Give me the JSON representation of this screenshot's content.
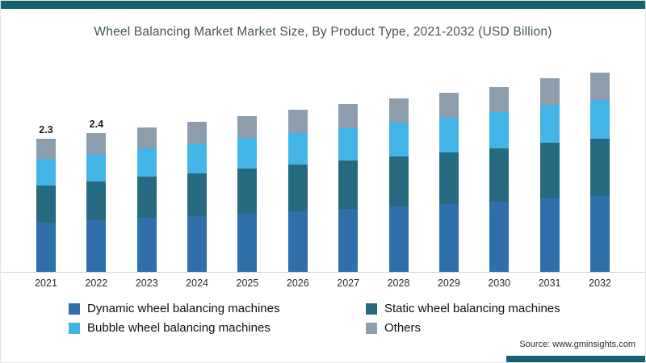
{
  "page": {
    "title": "Wheel Balancing Market Market Size, By Product Type, 2021-2032 (USD Billion)",
    "source": "Source: www.gminsights.com"
  },
  "colors": {
    "accent_teal": "#16616f",
    "axis_line": "#ccd2d6"
  },
  "chart_data": {
    "type": "bar",
    "stacked": true,
    "title": "Wheel Balancing Market Market Size, By Product Type, 2021-2032 (USD Billion)",
    "unit": "USD Billion",
    "categories": [
      "2021",
      "2022",
      "2023",
      "2024",
      "2025",
      "2026",
      "2027",
      "2028",
      "2029",
      "2030",
      "2031",
      "2032"
    ],
    "series": [
      {
        "name": "Dynamic wheel balancing machines",
        "color": "#2e6fac",
        "values": [
          0.85,
          0.89,
          0.93,
          0.97,
          1.01,
          1.05,
          1.09,
          1.13,
          1.17,
          1.21,
          1.27,
          1.31
        ]
      },
      {
        "name": "Static wheel balancing machines",
        "color": "#266a80",
        "values": [
          0.65,
          0.68,
          0.71,
          0.74,
          0.77,
          0.8,
          0.83,
          0.86,
          0.89,
          0.92,
          0.96,
          0.99
        ]
      },
      {
        "name": "Bubble wheel balancing machines",
        "color": "#42b5e6",
        "values": [
          0.45,
          0.47,
          0.49,
          0.51,
          0.53,
          0.55,
          0.57,
          0.59,
          0.61,
          0.63,
          0.66,
          0.68
        ]
      },
      {
        "name": "Others",
        "color": "#8e9dac",
        "values": [
          0.35,
          0.36,
          0.37,
          0.38,
          0.39,
          0.4,
          0.41,
          0.42,
          0.43,
          0.44,
          0.46,
          0.47
        ]
      }
    ],
    "bar_labels": [
      "2.3",
      "2.4",
      "",
      "",
      "",
      "",
      "",
      "",
      "",
      "",
      "",
      ""
    ],
    "totals": [
      2.3,
      2.4,
      2.5,
      2.6,
      2.7,
      2.8,
      2.9,
      3.0,
      3.1,
      3.2,
      3.35,
      3.45
    ],
    "ylim": [
      0,
      3.6
    ],
    "grid": false,
    "legend_position": "bottom"
  }
}
